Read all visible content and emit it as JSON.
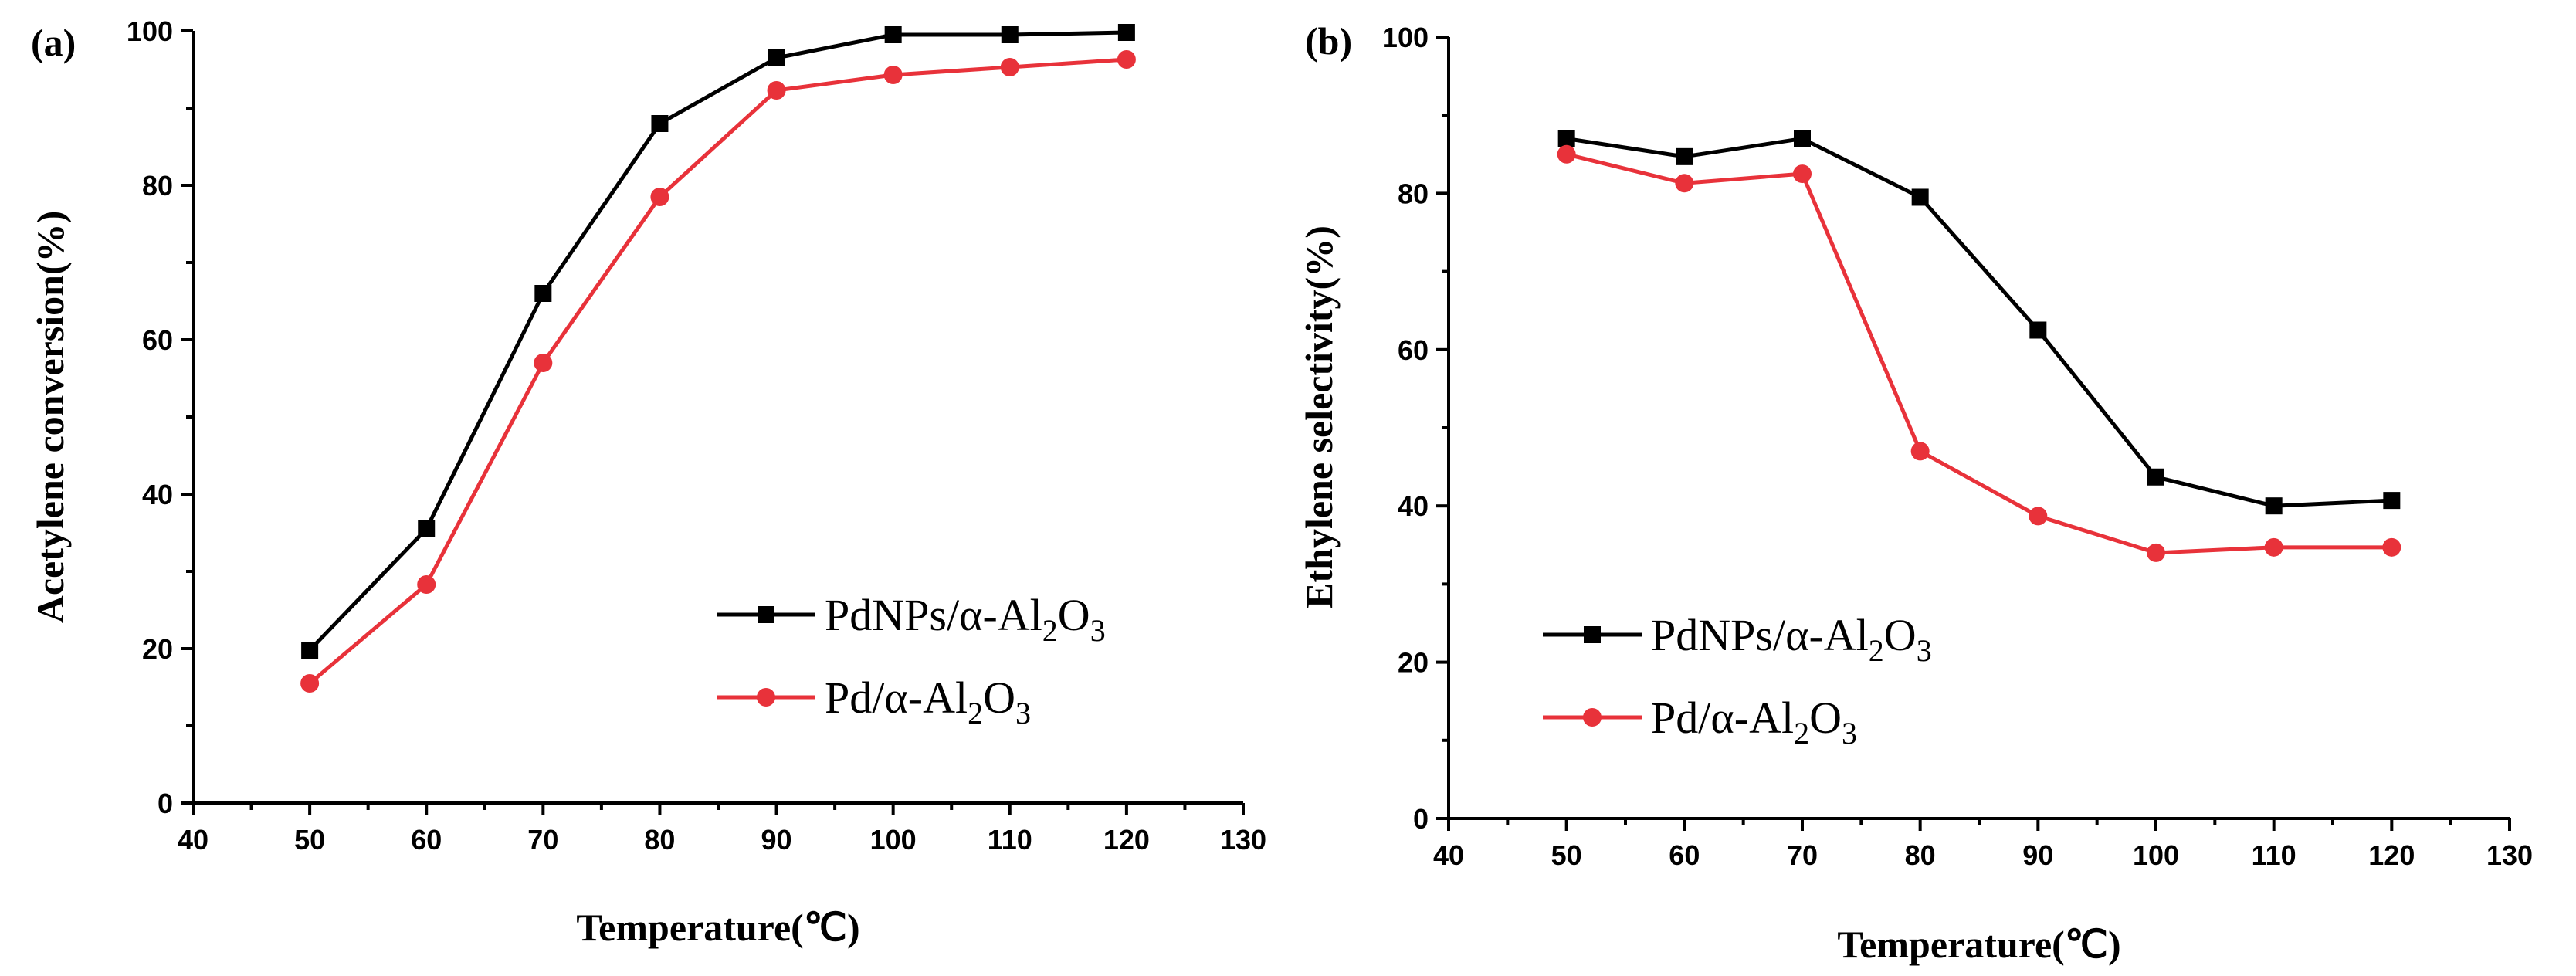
{
  "chart_data": [
    {
      "type": "line",
      "panel_label": "(a)",
      "xlabel": "Temperature(℃)",
      "ylabel": "Acetylene conversion(%)",
      "xlim": [
        40,
        130
      ],
      "ylim": [
        0,
        100
      ],
      "xticks": [
        40,
        50,
        60,
        70,
        80,
        90,
        100,
        110,
        120,
        130
      ],
      "yticks": [
        0,
        20,
        40,
        60,
        80,
        100
      ],
      "x": [
        50,
        60,
        70,
        80,
        90,
        100,
        110,
        120
      ],
      "legend_position": "center-right",
      "series": [
        {
          "name": "PdNPs/α-Al2O3",
          "legend": {
            "pre": "PdNPs/α-Al",
            "sub1": "2",
            "mid": "O",
            "sub2": "3"
          },
          "color": "#000000",
          "marker": "square",
          "values": [
            19.8,
            35.5,
            66,
            88,
            96.5,
            99.5,
            99.5,
            99.8
          ]
        },
        {
          "name": "Pd/α-Al2O3",
          "legend": {
            "pre": "Pd/α-Al",
            "sub1": "2",
            "mid": "O",
            "sub2": "3"
          },
          "color": "#e8323a",
          "marker": "circle",
          "values": [
            15.5,
            28.3,
            57,
            78.5,
            92.3,
            94.3,
            95.3,
            96.3
          ]
        }
      ]
    },
    {
      "type": "line",
      "panel_label": "(b)",
      "xlabel": "Temperature(℃)",
      "ylabel": "Ethylene selectivity(%)",
      "xlim": [
        40,
        130
      ],
      "ylim": [
        0,
        100
      ],
      "xticks": [
        40,
        50,
        60,
        70,
        80,
        90,
        100,
        110,
        120,
        130
      ],
      "yticks": [
        0,
        20,
        40,
        60,
        80,
        100
      ],
      "x": [
        50,
        60,
        70,
        80,
        90,
        100,
        110,
        120
      ],
      "legend_position": "lower-left",
      "series": [
        {
          "name": "PdNPs/α-Al2O3",
          "legend": {
            "pre": "PdNPs/α-Al",
            "sub1": "2",
            "mid": "O",
            "sub2": "3"
          },
          "color": "#000000",
          "marker": "square",
          "values": [
            87,
            84.7,
            87,
            79.5,
            62.5,
            43.7,
            40,
            40.7
          ]
        },
        {
          "name": "Pd/α-Al2O3",
          "legend": {
            "pre": "Pd/α-Al",
            "sub1": "2",
            "mid": "O",
            "sub2": "3"
          },
          "color": "#e8323a",
          "marker": "circle",
          "values": [
            85,
            81.3,
            82.5,
            47,
            38.7,
            34,
            34.7,
            34.7
          ]
        }
      ]
    }
  ]
}
